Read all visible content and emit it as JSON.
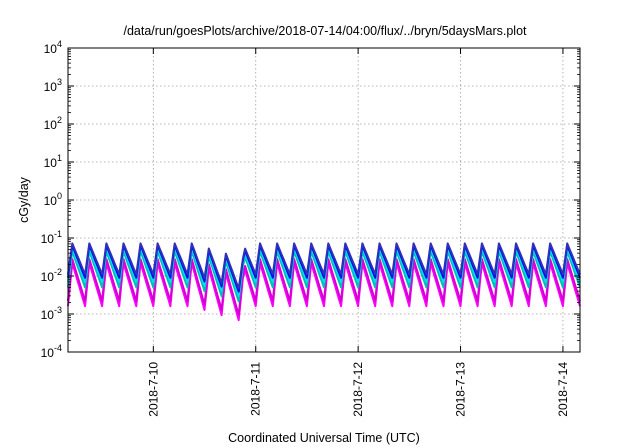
{
  "chart_data": {
    "type": "line",
    "title": "/data/run/goesPlots/archive/2018-07-14/04:00/flux/../bryn/5daysMars.plot",
    "xlabel": "Coordinated Universal Time (UTC)",
    "ylabel": "cGy/day",
    "yscale": "log",
    "ylim": [
      0.0001,
      10000
    ],
    "xlim": [
      "2018-07-09T04:00",
      "2018-07-14T04:00"
    ],
    "grid": true,
    "legend": "none",
    "y_ticks": [
      {
        "base": "10",
        "exp": "-4",
        "value": 0.0001
      },
      {
        "base": "10",
        "exp": "-3",
        "value": 0.001
      },
      {
        "base": "10",
        "exp": "-2",
        "value": 0.01
      },
      {
        "base": "10",
        "exp": "-1",
        "value": 0.1
      },
      {
        "base": "10",
        "exp": "0",
        "value": 1
      },
      {
        "base": "10",
        "exp": "1",
        "value": 10
      },
      {
        "base": "10",
        "exp": "2",
        "value": 100
      },
      {
        "base": "10",
        "exp": "3",
        "value": 1000
      },
      {
        "base": "10",
        "exp": "4",
        "value": 10000
      }
    ],
    "x_ticks": [
      {
        "label": "2018-7-10",
        "date": "2018-07-10T00:00"
      },
      {
        "label": "2018-7-11",
        "date": "2018-07-11T00:00"
      },
      {
        "label": "2018-7-12",
        "date": "2018-07-12T00:00"
      },
      {
        "label": "2018-7-13",
        "date": "2018-07-13T00:00"
      },
      {
        "label": "2018-7-14",
        "date": "2018-07-14T00:00"
      }
    ],
    "pattern": {
      "cycle_hours": 4,
      "dip_date": "2018-07-10T21:00",
      "dip_depth_decades": 0.4
    },
    "series": [
      {
        "color": "#ff00ff",
        "peak": 0.022,
        "trough": 0.0016
      },
      {
        "color": "#d400d4",
        "peak": 0.028,
        "trough": 0.0022
      },
      {
        "color": "#00bcbc",
        "peak": 0.045,
        "trough": 0.005
      },
      {
        "color": "#00e0e0",
        "peak": 0.055,
        "trough": 0.007
      },
      {
        "color": "#0000ff",
        "peak": 0.065,
        "trough": 0.009
      },
      {
        "color": "#3030b8",
        "peak": 0.072,
        "trough": 0.011
      }
    ]
  }
}
